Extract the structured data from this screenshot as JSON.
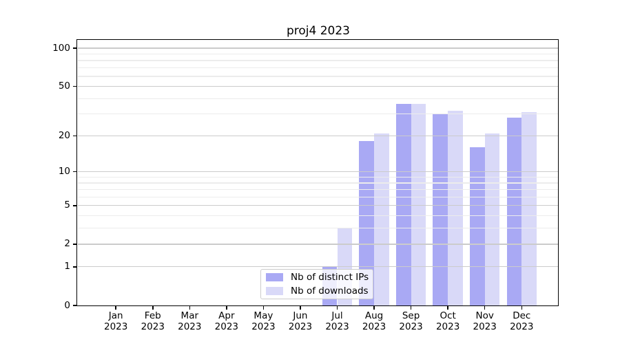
{
  "title": "proj4 2023",
  "colors": {
    "ips_bar": "#a9a9f4",
    "downloads_bar": "#d9d9f8",
    "grid_major": "#cbcbcb",
    "grid_minor": "#ececec",
    "axis": "#000000",
    "text": "#000000",
    "legend_border": "#cccccc"
  },
  "legend": {
    "items": [
      {
        "label": "Nb of distinct IPs",
        "color_key": "ips_bar"
      },
      {
        "label": "Nb of downloads",
        "color_key": "downloads_bar"
      }
    ],
    "position": "lower center"
  },
  "chart_data": {
    "type": "bar",
    "title": "proj4 2023",
    "categories": [
      "Jan 2023",
      "Feb 2023",
      "Mar 2023",
      "Apr 2023",
      "May 2023",
      "Jun 2023",
      "Jul 2023",
      "Aug 2023",
      "Sep 2023",
      "Oct 2023",
      "Nov 2023",
      "Dec 2023"
    ],
    "x_tick_labels": [
      {
        "month": "Jan",
        "year": "2023"
      },
      {
        "month": "Feb",
        "year": "2023"
      },
      {
        "month": "Mar",
        "year": "2023"
      },
      {
        "month": "Apr",
        "year": "2023"
      },
      {
        "month": "May",
        "year": "2023"
      },
      {
        "month": "Jun",
        "year": "2023"
      },
      {
        "month": "Jul",
        "year": "2023"
      },
      {
        "month": "Aug",
        "year": "2023"
      },
      {
        "month": "Sep",
        "year": "2023"
      },
      {
        "month": "Oct",
        "year": "2023"
      },
      {
        "month": "Nov",
        "year": "2023"
      },
      {
        "month": "Dec",
        "year": "2023"
      }
    ],
    "series": [
      {
        "name": "Nb of distinct IPs",
        "values": [
          0,
          0,
          0,
          0,
          0,
          0,
          1,
          18,
          36,
          30,
          16,
          28
        ]
      },
      {
        "name": "Nb of downloads",
        "values": [
          0,
          0,
          0,
          0,
          0,
          0,
          3,
          21,
          36,
          32,
          21,
          31
        ]
      }
    ],
    "xlabel": "",
    "ylabel": "",
    "y_scale": "log1p",
    "y_ticks": [
      0,
      1,
      2,
      5,
      10,
      20,
      50,
      100
    ],
    "y_minor_ticks": [
      3,
      4,
      6,
      7,
      8,
      9,
      30,
      40,
      60,
      70,
      80,
      90
    ],
    "ylim": [
      0,
      117
    ],
    "grid": true,
    "legend_position": "lower center"
  }
}
